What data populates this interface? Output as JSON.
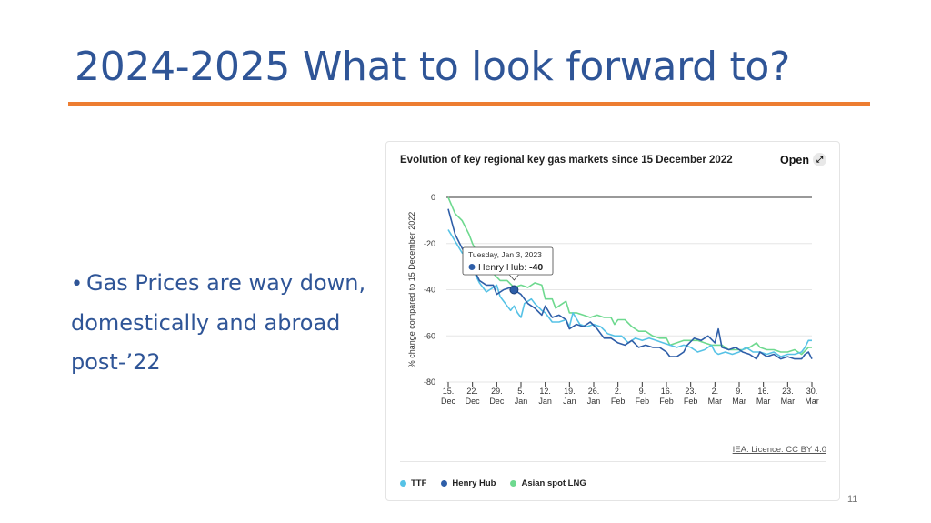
{
  "slide": {
    "title": "2024-2025 What to look forward to?",
    "bullet_line1": "Gas Prices are way down,",
    "bullet_line2": "domestically and abroad",
    "bullet_line3": "post-’22",
    "page_number": "11",
    "colors": {
      "title": "#2f5597",
      "rule": "#ed7d31"
    }
  },
  "chart_card": {
    "title": "Evolution of key regional key gas markets since 15 December 2022",
    "open_label": "Open",
    "open_icon": "expand-icon",
    "licence": "IEA. Licence: CC BY 4.0"
  },
  "chart_data": {
    "type": "line",
    "ylabel": "% change compared to 15 December 2022",
    "ylim": [
      -80,
      0
    ],
    "yticks": [
      0,
      -20,
      -40,
      -60,
      -80
    ],
    "xlim": [
      0,
      105
    ],
    "x_ticks": [
      {
        "x": 0,
        "day": "15.",
        "month": "Dec"
      },
      {
        "x": 7,
        "day": "22.",
        "month": "Dec"
      },
      {
        "x": 14,
        "day": "29.",
        "month": "Dec"
      },
      {
        "x": 21,
        "day": "5.",
        "month": "Jan"
      },
      {
        "x": 28,
        "day": "12.",
        "month": "Jan"
      },
      {
        "x": 35,
        "day": "19.",
        "month": "Jan"
      },
      {
        "x": 42,
        "day": "26.",
        "month": "Jan"
      },
      {
        "x": 49,
        "day": "2.",
        "month": "Feb"
      },
      {
        "x": 56,
        "day": "9.",
        "month": "Feb"
      },
      {
        "x": 63,
        "day": "16.",
        "month": "Feb"
      },
      {
        "x": 70,
        "day": "23.",
        "month": "Feb"
      },
      {
        "x": 77,
        "day": "2.",
        "month": "Mar"
      },
      {
        "x": 84,
        "day": "9.",
        "month": "Mar"
      },
      {
        "x": 91,
        "day": "16.",
        "month": "Mar"
      },
      {
        "x": 98,
        "day": "23.",
        "month": "Mar"
      },
      {
        "x": 105,
        "day": "30.",
        "month": "Mar"
      }
    ],
    "legend_position": "bottom-left",
    "series": [
      {
        "name": "TTF",
        "color": "#56c2e6",
        "points": [
          [
            0,
            -14
          ],
          [
            2,
            -19
          ],
          [
            4,
            -24
          ],
          [
            6,
            -26
          ],
          [
            7,
            -31
          ],
          [
            9,
            -37
          ],
          [
            11,
            -41
          ],
          [
            13,
            -39
          ],
          [
            14,
            -38
          ],
          [
            15,
            -43
          ],
          [
            17,
            -47
          ],
          [
            18,
            -49
          ],
          [
            19,
            -47
          ],
          [
            20,
            -50
          ],
          [
            21,
            -52
          ],
          [
            22,
            -46
          ],
          [
            24,
            -44
          ],
          [
            25,
            -46
          ],
          [
            27,
            -49
          ],
          [
            28,
            -50
          ],
          [
            30,
            -54
          ],
          [
            32,
            -54
          ],
          [
            34,
            -53
          ],
          [
            35,
            -56
          ],
          [
            36,
            -50
          ],
          [
            38,
            -55
          ],
          [
            40,
            -56
          ],
          [
            42,
            -55
          ],
          [
            44,
            -56
          ],
          [
            46,
            -59
          ],
          [
            48,
            -60
          ],
          [
            50,
            -60
          ],
          [
            52,
            -63
          ],
          [
            54,
            -61
          ],
          [
            56,
            -62
          ],
          [
            58,
            -61
          ],
          [
            60,
            -62
          ],
          [
            62,
            -63
          ],
          [
            64,
            -64
          ],
          [
            66,
            -65
          ],
          [
            68,
            -64
          ],
          [
            70,
            -65
          ],
          [
            72,
            -67
          ],
          [
            74,
            -66
          ],
          [
            76,
            -64
          ],
          [
            77,
            -67
          ],
          [
            78,
            -68
          ],
          [
            80,
            -67
          ],
          [
            82,
            -68
          ],
          [
            84,
            -67
          ],
          [
            86,
            -65
          ],
          [
            88,
            -67
          ],
          [
            90,
            -67
          ],
          [
            92,
            -68
          ],
          [
            94,
            -67
          ],
          [
            96,
            -69
          ],
          [
            98,
            -68
          ],
          [
            100,
            -68
          ],
          [
            102,
            -67
          ],
          [
            103,
            -65
          ],
          [
            104,
            -62
          ],
          [
            105,
            -62
          ]
        ]
      },
      {
        "name": "Henry Hub",
        "color": "#2e5ea8",
        "points": [
          [
            0,
            -5
          ],
          [
            2,
            -16
          ],
          [
            4,
            -22
          ],
          [
            6,
            -27
          ],
          [
            7,
            -30
          ],
          [
            9,
            -36
          ],
          [
            11,
            -38
          ],
          [
            13,
            -38
          ],
          [
            14,
            -42
          ],
          [
            16,
            -40
          ],
          [
            18,
            -39
          ],
          [
            19,
            -40
          ],
          [
            21,
            -42
          ],
          [
            23,
            -46
          ],
          [
            25,
            -48
          ],
          [
            27,
            -51
          ],
          [
            28,
            -47
          ],
          [
            30,
            -52
          ],
          [
            32,
            -51
          ],
          [
            34,
            -53
          ],
          [
            35,
            -57
          ],
          [
            37,
            -55
          ],
          [
            39,
            -56
          ],
          [
            41,
            -54
          ],
          [
            43,
            -57
          ],
          [
            45,
            -61
          ],
          [
            47,
            -61
          ],
          [
            49,
            -63
          ],
          [
            51,
            -64
          ],
          [
            53,
            -62
          ],
          [
            55,
            -65
          ],
          [
            57,
            -64
          ],
          [
            59,
            -65
          ],
          [
            61,
            -65
          ],
          [
            63,
            -67
          ],
          [
            64,
            -69
          ],
          [
            66,
            -69
          ],
          [
            68,
            -67
          ],
          [
            69,
            -64
          ],
          [
            71,
            -61
          ],
          [
            73,
            -62
          ],
          [
            75,
            -60
          ],
          [
            77,
            -63
          ],
          [
            78,
            -57
          ],
          [
            79,
            -65
          ],
          [
            81,
            -66
          ],
          [
            83,
            -65
          ],
          [
            85,
            -67
          ],
          [
            87,
            -68
          ],
          [
            89,
            -70
          ],
          [
            90,
            -67
          ],
          [
            92,
            -69
          ],
          [
            94,
            -68
          ],
          [
            96,
            -70
          ],
          [
            98,
            -69
          ],
          [
            100,
            -70
          ],
          [
            102,
            -70
          ],
          [
            103,
            -68
          ],
          [
            104,
            -67
          ],
          [
            105,
            -70
          ]
        ]
      },
      {
        "name": "Asian spot LNG",
        "color": "#6ed98f",
        "points": [
          [
            0,
            0
          ],
          [
            2,
            -7
          ],
          [
            4,
            -10
          ],
          [
            6,
            -16
          ],
          [
            7,
            -20
          ],
          [
            9,
            -26
          ],
          [
            11,
            -28
          ],
          [
            13,
            -33
          ],
          [
            15,
            -36
          ],
          [
            17,
            -36
          ],
          [
            19,
            -39
          ],
          [
            21,
            -38
          ],
          [
            23,
            -39
          ],
          [
            25,
            -37
          ],
          [
            27,
            -38
          ],
          [
            28,
            -44
          ],
          [
            30,
            -44
          ],
          [
            31,
            -48
          ],
          [
            33,
            -46
          ],
          [
            34,
            -45
          ],
          [
            35,
            -50
          ],
          [
            37,
            -50
          ],
          [
            39,
            -51
          ],
          [
            41,
            -52
          ],
          [
            43,
            -51
          ],
          [
            45,
            -52
          ],
          [
            47,
            -52
          ],
          [
            48,
            -55
          ],
          [
            49,
            -53
          ],
          [
            51,
            -53
          ],
          [
            53,
            -56
          ],
          [
            55,
            -58
          ],
          [
            57,
            -58
          ],
          [
            59,
            -60
          ],
          [
            61,
            -61
          ],
          [
            63,
            -61
          ],
          [
            64,
            -64
          ],
          [
            66,
            -63
          ],
          [
            68,
            -62
          ],
          [
            70,
            -62
          ],
          [
            72,
            -62
          ],
          [
            74,
            -63
          ],
          [
            76,
            -64
          ],
          [
            77,
            -64
          ],
          [
            79,
            -64
          ],
          [
            81,
            -66
          ],
          [
            83,
            -66
          ],
          [
            85,
            -66
          ],
          [
            87,
            -65
          ],
          [
            89,
            -63
          ],
          [
            90,
            -65
          ],
          [
            92,
            -66
          ],
          [
            94,
            -66
          ],
          [
            96,
            -67
          ],
          [
            98,
            -67
          ],
          [
            100,
            -66
          ],
          [
            102,
            -68
          ],
          [
            104,
            -65
          ],
          [
            105,
            -65
          ]
        ]
      }
    ],
    "tooltip": {
      "date": "Tuesday, Jan 3, 2023",
      "series_label": "Henry Hub:",
      "value_label": "-40",
      "x": 19,
      "y": -40
    }
  }
}
